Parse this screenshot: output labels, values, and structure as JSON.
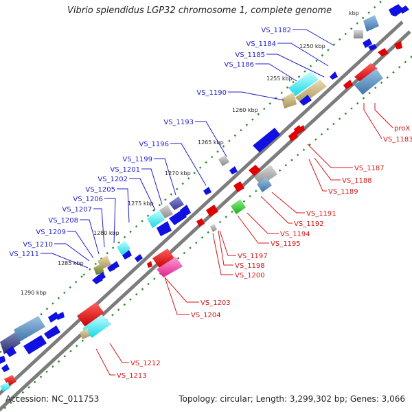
{
  "title": "Vibrio splendidus LGP32 chromosome 1, complete genome",
  "footer": {
    "accession": "Accession: NC_011753",
    "summary": "Topology: circular; Length: 3,299,302 bp; Genes: 3,066"
  },
  "colors": {
    "background": "#ffffff",
    "backbone": "#8a8a8a",
    "forward_label": "#1c1ccc",
    "reverse_label": "#d41414",
    "tick": "#2e8b2e"
  },
  "kbp_markers": [
    "kbp",
    "1250 kbp",
    "1255 kbp",
    "1260 kbp",
    "1265 kbp",
    "1270 kbp",
    "1275 kbp",
    "1280 kbp",
    "1285 kbp",
    "1290 kbp"
  ],
  "forward_genes": [
    "VS_1182",
    "VS_1184",
    "VS_1185",
    "VS_1186",
    "VS_1190",
    "VS_1193",
    "VS_1196",
    "VS_1199",
    "VS_1201",
    "VS_1202",
    "VS_1205",
    "VS_1206",
    "VS_1207",
    "VS_1208",
    "VS_1209",
    "VS_1210",
    "VS_1211"
  ],
  "reverse_genes": [
    "proX",
    "VS_1183",
    "VS_1187",
    "VS_1188",
    "VS_1189",
    "VS_1191",
    "VS_1192",
    "VS_1194",
    "VS_1195",
    "VS_1197",
    "VS_1198",
    "VS_1200",
    "VS_1203",
    "VS_1204",
    "VS_1212",
    "VS_1213"
  ]
}
